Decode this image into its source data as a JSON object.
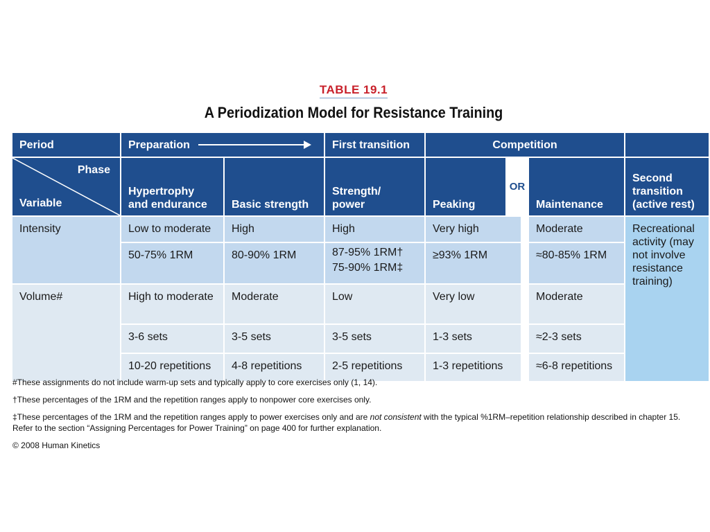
{
  "table_number": "TABLE 19.1",
  "title": "A Periodization Model for Resistance Training",
  "header": {
    "period": "Period",
    "preparation": "Preparation",
    "first_transition": "First transition",
    "competition": "Competition",
    "phase": "Phase",
    "variable": "Variable",
    "hypertrophy": "Hypertrophy and endurance",
    "basic_strength": "Basic strength",
    "strength_power": "Strength/ power",
    "or": "OR",
    "peaking": "Peaking",
    "maintenance": "Maintenance",
    "second_transition": "Second transition (active rest)"
  },
  "rows": {
    "intensity_label": "Intensity",
    "intensity": [
      "Low to moderate",
      "High",
      "High",
      "Very high",
      "Moderate"
    ],
    "rm": [
      "50-75% 1RM",
      "80-90% 1RM",
      "87-95% 1RM†",
      "≥93% 1RM",
      "≈80-85% 1RM"
    ],
    "rm_power": "75-90% 1RM‡",
    "volume_label": "Volume#",
    "volume": [
      "High to moderate",
      "Moderate",
      "Low",
      "Very low",
      "Moderate"
    ],
    "sets": [
      "3-6 sets",
      "3-5 sets",
      "3-5 sets",
      "1-3 sets",
      "≈2-3 sets"
    ],
    "reps": [
      "10-20 repetitions",
      "4-8 repetitions",
      "2-5 repetitions",
      "1-3 repetitions",
      "≈6-8 repetitions"
    ],
    "second_transition_text": "Recreational activity (may not involve resistance training)"
  },
  "footnotes": {
    "note1": "#These assignments do not include warm-up sets and typically apply to core exercises only (1, 14).",
    "note2": "†These percentages of the 1RM and the repetition ranges apply to nonpower core exercises only.",
    "note3_a": "‡These percentages of the 1RM and the repetition ranges apply to power exercises only and are ",
    "note3_em": "not consistent",
    "note3_b": " with the typical %1RM–repetition relationship described in chapter 15. Refer to the section “Assigning Percentages for Power Training” on page 400 for further explanation.",
    "copyright": "© 2008 Human Kinetics"
  }
}
